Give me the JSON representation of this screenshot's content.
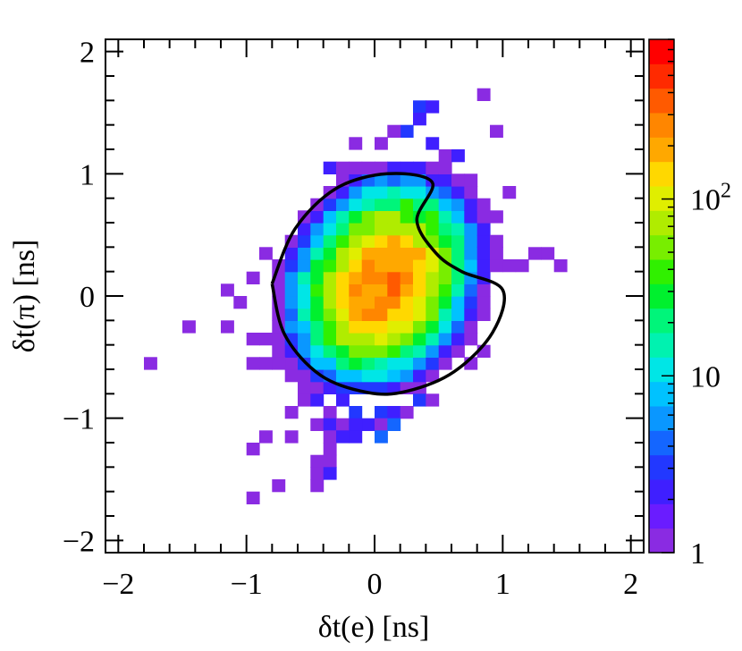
{
  "chart_data": {
    "type": "heatmap",
    "title": "",
    "xlabel": "δt(e) [ns]",
    "ylabel": "δt(π) [ns]",
    "xlim": [
      -2.1,
      2.1
    ],
    "ylim": [
      -2.1,
      2.1
    ],
    "x_ticks": [
      {
        "value": -2,
        "label": "−2"
      },
      {
        "value": -1,
        "label": "−1"
      },
      {
        "value": 0,
        "label": "0"
      },
      {
        "value": 1,
        "label": "1"
      },
      {
        "value": 2,
        "label": "2"
      }
    ],
    "y_ticks": [
      {
        "value": -2,
        "label": "−2"
      },
      {
        "value": -1,
        "label": "−1"
      },
      {
        "value": 0,
        "label": "0"
      },
      {
        "value": 1,
        "label": "1"
      },
      {
        "value": 2,
        "label": "2"
      }
    ],
    "bin_width": 0.1,
    "colorbar": {
      "scale": "log",
      "min": 1,
      "max": 800,
      "labels": [
        {
          "value": 1,
          "base": "1",
          "exp": ""
        },
        {
          "value": 10,
          "base": "10",
          "exp": ""
        },
        {
          "value": 100,
          "base": "10",
          "exp": "2"
        }
      ],
      "colors": [
        "#8a2be2",
        "#6a1cff",
        "#3f1fff",
        "#2238ff",
        "#1466ff",
        "#0a97ff",
        "#00c2ff",
        "#00e6e6",
        "#00f2b0",
        "#00f57a",
        "#00f02e",
        "#30f000",
        "#78ee00",
        "#b0ec00",
        "#e0ee00",
        "#ffd800",
        "#ffa800",
        "#ff8600",
        "#ff5a00",
        "#ff2a00",
        "#ff0000"
      ]
    },
    "cut_contour": {
      "description_points": [
        [
          -0.8,
          0.1
        ],
        [
          -0.62,
          0.55
        ],
        [
          -0.3,
          0.88
        ],
        [
          0.1,
          1.0
        ],
        [
          0.45,
          0.93
        ],
        [
          0.33,
          0.62
        ],
        [
          0.48,
          0.35
        ],
        [
          0.68,
          0.2
        ],
        [
          1.0,
          0.05
        ],
        [
          0.92,
          -0.3
        ],
        [
          0.62,
          -0.62
        ],
        [
          0.25,
          -0.78
        ],
        [
          -0.05,
          -0.79
        ],
        [
          -0.42,
          -0.65
        ],
        [
          -0.7,
          -0.32
        ],
        [
          -0.8,
          0.1
        ]
      ],
      "color": "#000000"
    },
    "bins": [
      {
        "x": 0.35,
        "y": 1.55,
        "count": 3
      },
      {
        "x": 0.45,
        "y": 1.55,
        "count": 2
      },
      {
        "x": 0.85,
        "y": 1.65,
        "count": 1
      },
      {
        "x": 0.95,
        "y": 1.35,
        "count": 1
      },
      {
        "x": 0.35,
        "y": 1.45,
        "count": 2
      },
      {
        "x": 0.25,
        "y": 1.35,
        "count": 3
      },
      {
        "x": 0.15,
        "y": 1.35,
        "count": 1
      },
      {
        "x": 0.05,
        "y": 1.25,
        "count": 1
      },
      {
        "x": -0.15,
        "y": 1.25,
        "count": 1
      },
      {
        "x": 0.45,
        "y": 1.25,
        "count": 2
      },
      {
        "x": 0.55,
        "y": 1.15,
        "count": 1
      },
      {
        "x": 0.65,
        "y": 1.15,
        "count": 2
      },
      {
        "x": -0.35,
        "y": 1.05,
        "count": 2
      },
      {
        "x": -0.25,
        "y": 1.05,
        "count": 1
      },
      {
        "x": -0.05,
        "y": 1.05,
        "count": 3
      },
      {
        "x": 0.35,
        "y": 1.05,
        "count": 4
      },
      {
        "x": 0.55,
        "y": 1.05,
        "count": 1
      },
      {
        "x": 0.65,
        "y": 0.95,
        "count": 2
      },
      {
        "x": 0.75,
        "y": 0.85,
        "count": 1
      },
      {
        "x": 1.05,
        "y": 0.85,
        "count": 1
      },
      {
        "x": 0.85,
        "y": 0.75,
        "count": 2
      },
      {
        "x": 0.95,
        "y": 0.65,
        "count": 1
      },
      {
        "x": -0.55,
        "y": 0.65,
        "count": 2
      },
      {
        "x": -0.45,
        "y": 0.75,
        "count": 1
      },
      {
        "x": -0.65,
        "y": 0.45,
        "count": 1
      },
      {
        "x": -0.85,
        "y": 0.35,
        "count": 1
      },
      {
        "x": 1.25,
        "y": 0.35,
        "count": 1
      },
      {
        "x": 1.35,
        "y": 0.35,
        "count": 1
      },
      {
        "x": 1.05,
        "y": 0.25,
        "count": 1
      },
      {
        "x": 1.15,
        "y": 0.25,
        "count": 1
      },
      {
        "x": 1.45,
        "y": 0.25,
        "count": 1
      },
      {
        "x": 0.95,
        "y": 0.45,
        "count": 1
      },
      {
        "x": -1.15,
        "y": 0.05,
        "count": 1
      },
      {
        "x": -0.95,
        "y": 0.15,
        "count": 1
      },
      {
        "x": -1.05,
        "y": -0.05,
        "count": 1
      },
      {
        "x": -1.45,
        "y": -0.25,
        "count": 1
      },
      {
        "x": -1.15,
        "y": -0.25,
        "count": 1
      },
      {
        "x": -0.95,
        "y": -0.35,
        "count": 1
      },
      {
        "x": -0.85,
        "y": -0.35,
        "count": 1
      },
      {
        "x": -0.75,
        "y": -0.45,
        "count": 1
      },
      {
        "x": -1.75,
        "y": -0.55,
        "count": 1
      },
      {
        "x": -0.95,
        "y": -0.55,
        "count": 1
      },
      {
        "x": -0.85,
        "y": -0.55,
        "count": 1
      },
      {
        "x": -0.75,
        "y": -0.55,
        "count": 1
      },
      {
        "x": -0.55,
        "y": -0.85,
        "count": 1
      },
      {
        "x": -0.45,
        "y": -0.85,
        "count": 2
      },
      {
        "x": -0.35,
        "y": -0.95,
        "count": 1
      },
      {
        "x": -0.25,
        "y": -0.85,
        "count": 2
      },
      {
        "x": -0.15,
        "y": -0.95,
        "count": 3
      },
      {
        "x": -0.05,
        "y": -1.05,
        "count": 2
      },
      {
        "x": 0.05,
        "y": -0.95,
        "count": 3
      },
      {
        "x": 0.15,
        "y": -0.95,
        "count": 2
      },
      {
        "x": 0.25,
        "y": -0.95,
        "count": 1
      },
      {
        "x": 0.35,
        "y": -0.85,
        "count": 3
      },
      {
        "x": 0.45,
        "y": -0.85,
        "count": 1
      },
      {
        "x": 0.75,
        "y": -0.55,
        "count": 1
      },
      {
        "x": 0.85,
        "y": -0.45,
        "count": 1
      },
      {
        "x": -0.65,
        "y": -0.95,
        "count": 1
      },
      {
        "x": -0.45,
        "y": -1.05,
        "count": 1
      },
      {
        "x": -0.35,
        "y": -1.05,
        "count": 2
      },
      {
        "x": -0.25,
        "y": -1.05,
        "count": 1
      },
      {
        "x": -0.15,
        "y": -1.05,
        "count": 2
      },
      {
        "x": 0.05,
        "y": -1.05,
        "count": 1
      },
      {
        "x": 0.15,
        "y": -1.05,
        "count": 4
      },
      {
        "x": -0.85,
        "y": -1.15,
        "count": 1
      },
      {
        "x": -0.35,
        "y": -1.15,
        "count": 1
      },
      {
        "x": -0.25,
        "y": -1.15,
        "count": 2
      },
      {
        "x": -0.15,
        "y": -1.15,
        "count": 2
      },
      {
        "x": 0.05,
        "y": -1.15,
        "count": 4
      },
      {
        "x": -0.35,
        "y": -1.25,
        "count": 1
      },
      {
        "x": -0.95,
        "y": -1.25,
        "count": 1
      },
      {
        "x": -0.45,
        "y": -1.35,
        "count": 1
      },
      {
        "x": -0.35,
        "y": -1.35,
        "count": 1
      },
      {
        "x": -0.45,
        "y": -1.45,
        "count": 1
      },
      {
        "x": -0.45,
        "y": -1.55,
        "count": 1
      },
      {
        "x": -0.35,
        "y": -1.45,
        "count": 2
      },
      {
        "x": -0.75,
        "y": -1.55,
        "count": 1
      },
      {
        "x": -0.95,
        "y": -1.65,
        "count": 1
      },
      {
        "x": -0.65,
        "y": -1.15,
        "count": 1
      }
    ]
  }
}
